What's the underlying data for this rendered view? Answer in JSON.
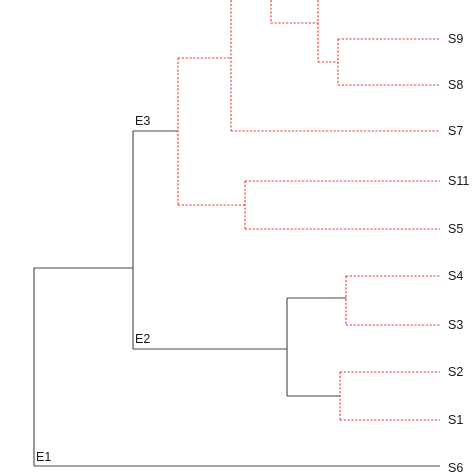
{
  "colors": {
    "solid_branch": "#444444",
    "dashed_branch": "#e53935",
    "label": "#1a1a1a"
  },
  "tree": {
    "nodes": [
      {
        "id": "E1",
        "label": "E1"
      },
      {
        "id": "E2",
        "label": "E2"
      },
      {
        "id": "E3",
        "label": "E3"
      }
    ],
    "leaves": [
      "S9",
      "S8",
      "S7",
      "S11",
      "S5",
      "S4",
      "S3",
      "S2",
      "S1",
      "S6"
    ]
  }
}
